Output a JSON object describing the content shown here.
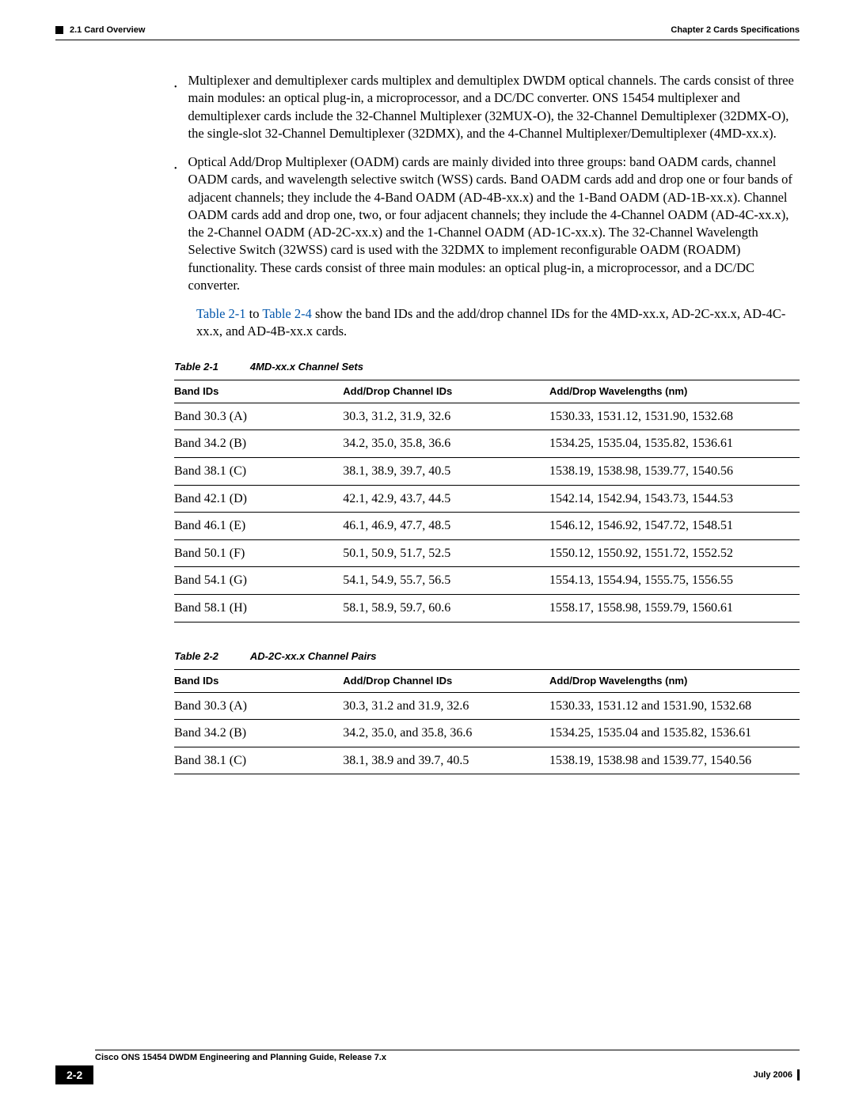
{
  "header": {
    "section_left": "2.1   Card Overview",
    "chapter_right": "Chapter 2      Cards Specifications"
  },
  "body": {
    "bullet1": "Multiplexer and demultiplexer cards multiplex and demultiplex DWDM optical channels. The cards consist of three main modules: an optical plug-in, a microprocessor, and a DC/DC converter. ONS 15454 multiplexer and demultiplexer cards include the 32-Channel Multiplexer (32MUX-O), the 32-Channel Demultiplexer (32DMX-O), the single-slot 32-Channel Demultiplexer (32DMX), and the 4-Channel Multiplexer/Demultiplexer (4MD-xx.x).",
    "bullet2": "Optical Add/Drop Multiplexer (OADM) cards are mainly divided into three groups: band OADM cards, channel OADM cards, and wavelength selective switch (WSS) cards. Band OADM cards add and drop one or four bands of adjacent channels; they include the 4-Band OADM (AD-4B-xx.x) and the 1-Band OADM (AD-1B-xx.x). Channel OADM cards add and drop one, two, or four adjacent channels; they include the 4-Channel OADM (AD-4C-xx.x), the 2-Channel OADM (AD-2C-xx.x) and the 1-Channel OADM (AD-1C-xx.x). The 32-Channel Wavelength Selective Switch (32WSS) card is used with the 32DMX to implement reconfigurable OADM (ROADM) functionality. These cards consist of three main modules: an optical plug-in, a microprocessor, and a DC/DC converter.",
    "ref_link1": "Table 2-1",
    "ref_mid": " to ",
    "ref_link2": "Table 2-4",
    "ref_tail": " show the band IDs and the add/drop channel IDs for the 4MD-xx.x, AD-2C-xx.x, AD-4C-xx.x, and AD-4B-xx.x cards."
  },
  "table1": {
    "caption_num": "Table 2-1",
    "caption_title": "4MD-xx.x Channel Sets",
    "headers": {
      "c1": "Band IDs",
      "c2": "Add/Drop Channel IDs",
      "c3": "Add/Drop Wavelengths (nm)"
    },
    "rows": [
      {
        "c1": "Band 30.3 (A)",
        "c2": "30.3, 31.2, 31.9, 32.6",
        "c3": "1530.33, 1531.12, 1531.90, 1532.68"
      },
      {
        "c1": "Band 34.2 (B)",
        "c2": "34.2, 35.0, 35.8, 36.6",
        "c3": "1534.25, 1535.04, 1535.82, 1536.61"
      },
      {
        "c1": "Band 38.1 (C)",
        "c2": "38.1, 38.9, 39.7, 40.5",
        "c3": "1538.19, 1538.98, 1539.77, 1540.56"
      },
      {
        "c1": "Band 42.1 (D)",
        "c2": "42.1, 42.9, 43.7, 44.5",
        "c3": "1542.14, 1542.94, 1543.73, 1544.53"
      },
      {
        "c1": "Band 46.1 (E)",
        "c2": "46.1, 46.9, 47.7, 48.5",
        "c3": "1546.12, 1546.92, 1547.72, 1548.51"
      },
      {
        "c1": "Band 50.1 (F)",
        "c2": "50.1, 50.9, 51.7, 52.5",
        "c3": "1550.12, 1550.92, 1551.72, 1552.52"
      },
      {
        "c1": "Band 54.1 (G)",
        "c2": "54.1, 54.9, 55.7, 56.5",
        "c3": "1554.13, 1554.94, 1555.75, 1556.55"
      },
      {
        "c1": "Band 58.1 (H)",
        "c2": "58.1, 58.9, 59.7, 60.6",
        "c3": "1558.17, 1558.98, 1559.79, 1560.61"
      }
    ]
  },
  "table2": {
    "caption_num": "Table 2-2",
    "caption_title": "AD-2C-xx.x Channel Pairs",
    "headers": {
      "c1": "Band IDs",
      "c2": "Add/Drop Channel IDs",
      "c3": "Add/Drop Wavelengths (nm)"
    },
    "rows": [
      {
        "c1": "Band 30.3 (A)",
        "c2": "30.3, 31.2 and 31.9, 32.6",
        "c3": "1530.33, 1531.12 and 1531.90, 1532.68"
      },
      {
        "c1": "Band 34.2 (B)",
        "c2": "34.2, 35.0, and 35.8, 36.6",
        "c3": "1534.25, 1535.04 and 1535.82, 1536.61"
      },
      {
        "c1": "Band 38.1 (C)",
        "c2": "38.1, 38.9 and 39.7, 40.5",
        "c3": "1538.19, 1538.98 and 1539.77, 1540.56"
      }
    ]
  },
  "footer": {
    "guide_title": "Cisco ONS 15454 DWDM Engineering and Planning Guide, Release 7.x",
    "page_num": "2-2",
    "date": "July 2006"
  },
  "colors": {
    "link": "#0055aa",
    "text": "#000000",
    "bg": "#ffffff"
  }
}
